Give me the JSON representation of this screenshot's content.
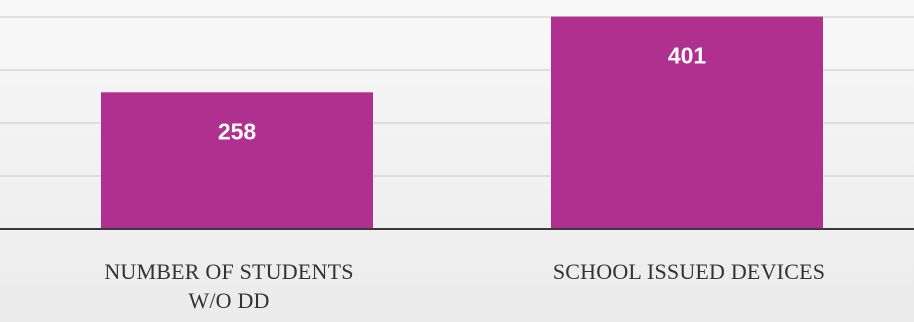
{
  "chart_data": {
    "type": "bar",
    "title": "",
    "xlabel": "",
    "ylabel": "",
    "categories": [
      [
        "NUMBER OF STUDENTS",
        "W/O DD"
      ],
      [
        "SCHOOL ISSUED DEVICES"
      ]
    ],
    "values": [
      258,
      401
    ],
    "data_labels": [
      "258",
      "401"
    ],
    "ylim": [
      0,
      420
    ],
    "y_gridlines": [
      0,
      100,
      200,
      300,
      400
    ],
    "grid": true,
    "legend": "none",
    "bar_color": "#b0308f",
    "label_color": "#ffffff",
    "axis_color": "#3a3a3a",
    "gridline_color": "#c8c8c8",
    "tick_label_color": "#333333"
  }
}
